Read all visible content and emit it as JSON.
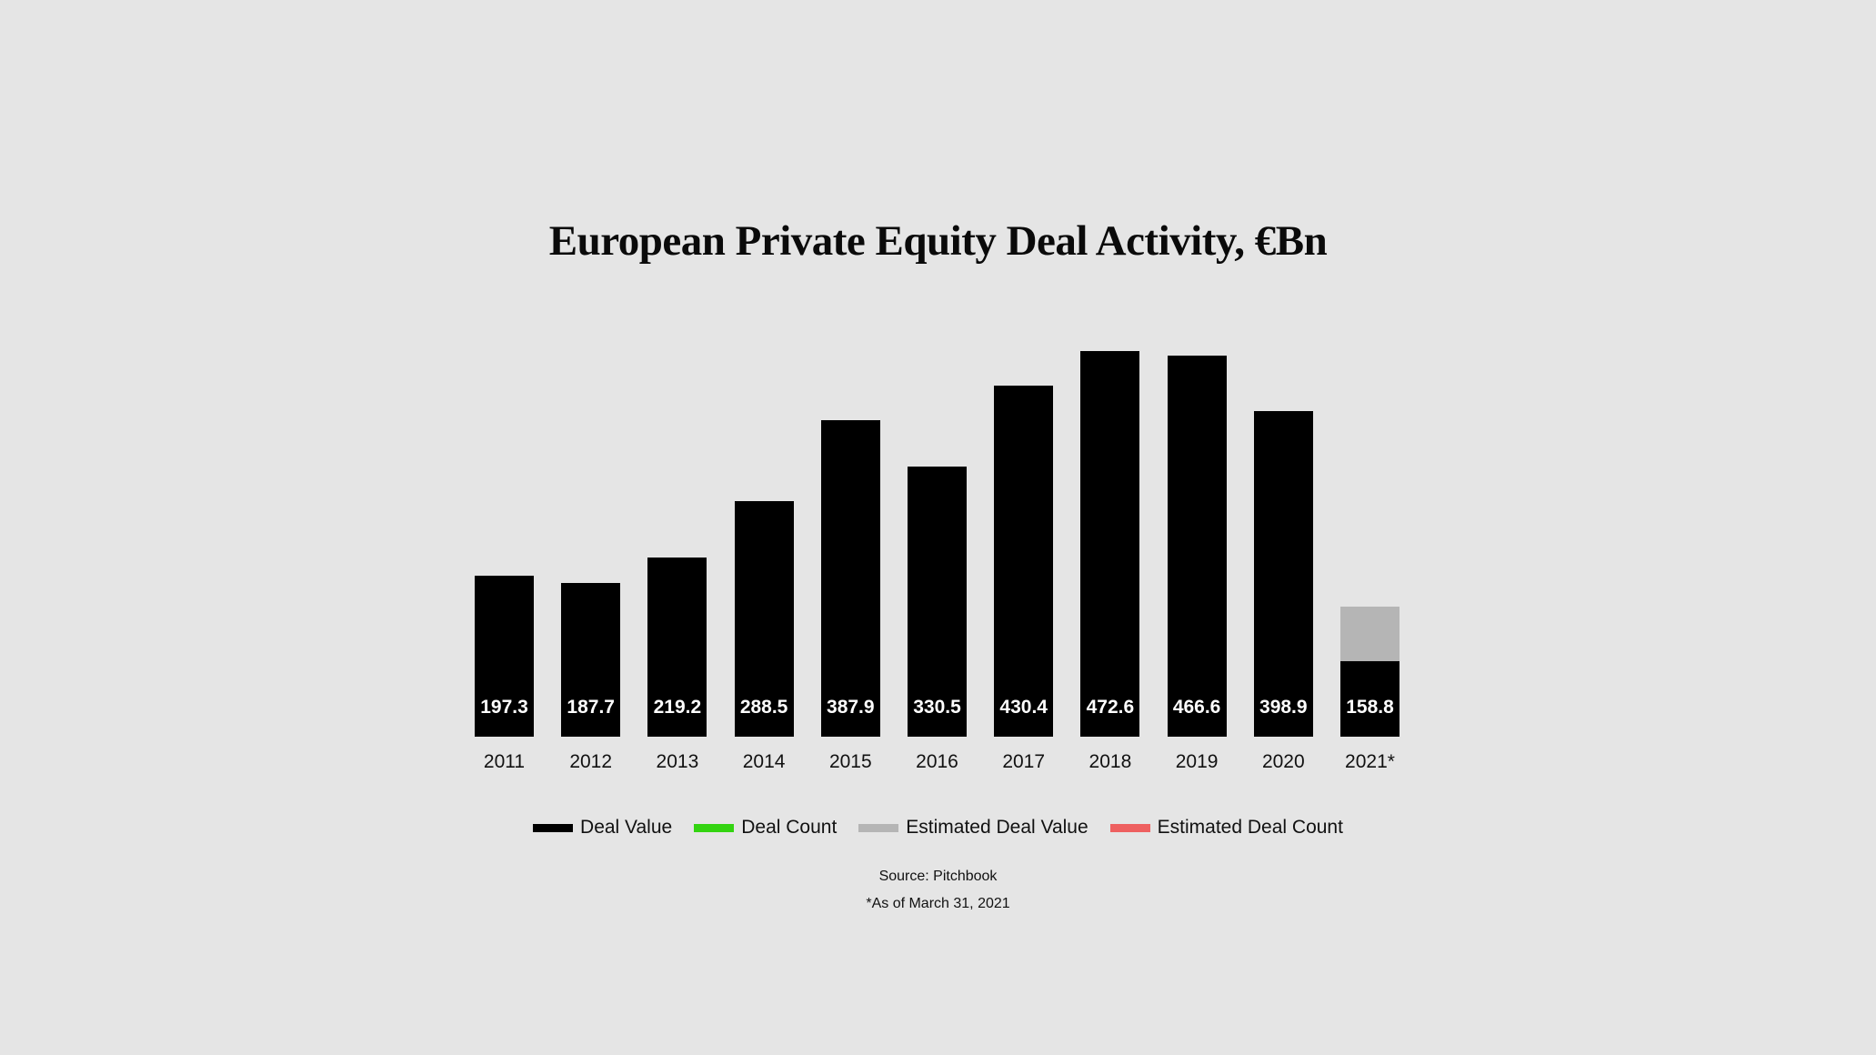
{
  "title": "European Private Equity Deal Activity, €Bn",
  "legend": [
    {
      "label": "Deal Value",
      "color": "#000000"
    },
    {
      "label": "Deal Count",
      "color": "#33d411"
    },
    {
      "label": "Estimated Deal Value",
      "color": "#b5b5b5"
    },
    {
      "label": "Estimated Deal Count",
      "color": "#ee6060"
    }
  ],
  "footer": {
    "source": "Source: Pitchbook",
    "note": "*As of March 31, 2021"
  },
  "colors": {
    "background": "#e5e5e5",
    "deal_value": "#000000",
    "estimated_deal_value": "#b5b5b5"
  },
  "chart_data": {
    "type": "bar",
    "title": "European Private Equity Deal Activity, €Bn",
    "xlabel": "",
    "ylabel": "",
    "categories": [
      "2011",
      "2012",
      "2013",
      "2014",
      "2015",
      "2016",
      "2017",
      "2018",
      "2019",
      "2020",
      "2021*"
    ],
    "series": [
      {
        "name": "Deal Value",
        "values": [
          197.3,
          187.7,
          219.2,
          288.5,
          387.9,
          330.5,
          430.4,
          472.6,
          466.6,
          398.9,
          92
        ]
      },
      {
        "name": "Estimated Deal Value",
        "values": [
          0,
          0,
          0,
          0,
          0,
          0,
          0,
          0,
          0,
          0,
          67
        ]
      }
    ],
    "data_labels": [
      "197.3",
      "187.7",
      "219.2",
      "288.5",
      "387.9",
      "330.5",
      "430.4",
      "472.6",
      "466.6",
      "398.9",
      "158.8"
    ],
    "stacked": true,
    "ylim": [
      0,
      500
    ],
    "grid": false,
    "axes_visible": false,
    "legend_position": "bottom",
    "annotations": [
      "Source: Pitchbook",
      "*As of March 31, 2021"
    ]
  }
}
